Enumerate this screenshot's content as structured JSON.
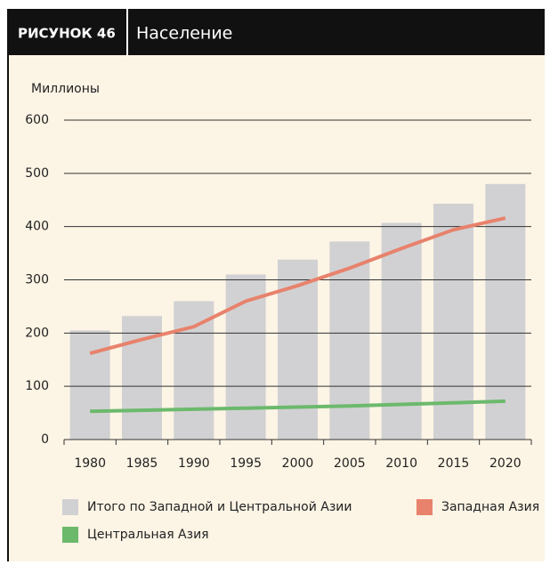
{
  "header": {
    "figure": "РИСУНОК 46",
    "title": "Население"
  },
  "chart_data": {
    "type": "bar",
    "y_label": "Миллионы",
    "categories": [
      "1980",
      "1985",
      "1990",
      "1995",
      "2000",
      "2005",
      "2010",
      "2015",
      "2020"
    ],
    "series": [
      {
        "name": "Итого по Западной и Центральной Азии",
        "style": "bar",
        "color": "#d1d1d3",
        "values": [
          205,
          232,
          260,
          310,
          338,
          372,
          407,
          443,
          480
        ]
      },
      {
        "name": "Западная Азия",
        "style": "line",
        "color": "#e8826c",
        "values": [
          162,
          188,
          212,
          260,
          289,
          322,
          359,
          394,
          416
        ]
      },
      {
        "name": "Центральная Азия",
        "style": "line",
        "color": "#6cb96c",
        "values": [
          53,
          55,
          57,
          59,
          61,
          63,
          66,
          69,
          72
        ]
      }
    ],
    "ylim": [
      0,
      600
    ],
    "yticks": [
      0,
      100,
      200,
      300,
      400,
      500,
      600
    ],
    "grid": true
  }
}
